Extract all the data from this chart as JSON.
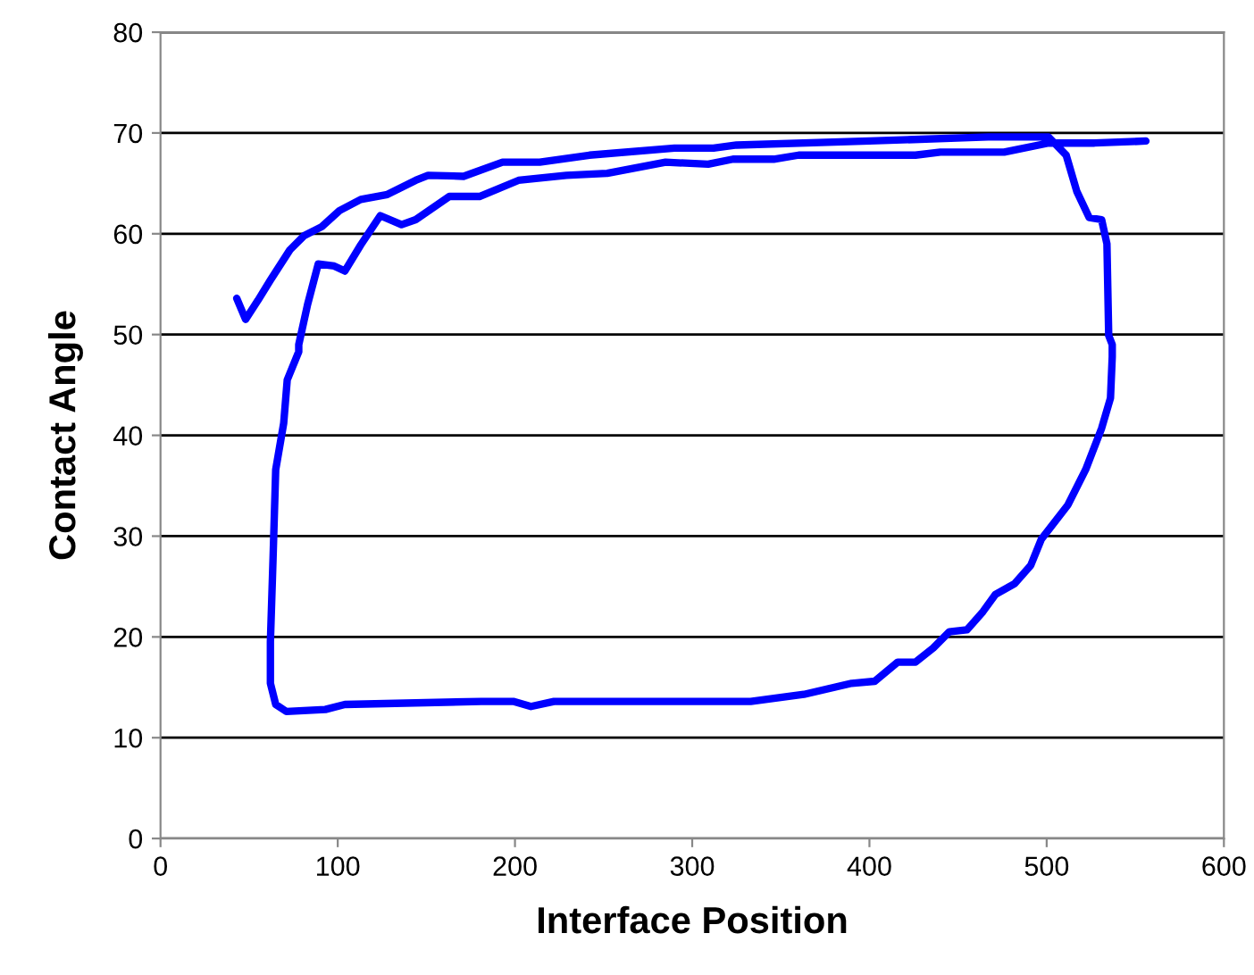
{
  "chart_data": {
    "type": "line",
    "xlabel": "Interface Position",
    "ylabel": "Contact Angle",
    "xlim": [
      0,
      600
    ],
    "ylim": [
      0,
      80
    ],
    "xticks": [
      0,
      100,
      200,
      300,
      400,
      500,
      600
    ],
    "yticks": [
      0,
      10,
      20,
      30,
      40,
      50,
      60,
      70,
      80
    ],
    "grid": "y",
    "line_style": "solid",
    "marker": "none",
    "series": [
      {
        "color": "#0000ff",
        "x": [
          43,
          48,
          55,
          62,
          73,
          81,
          91,
          101,
          113,
          128,
          144,
          151,
          171,
          193,
          214,
          242,
          290,
          312,
          325,
          400,
          467,
          501,
          511,
          517,
          524,
          531,
          534,
          535,
          537,
          537,
          536,
          531,
          522,
          512,
          497,
          491,
          482,
          471,
          464,
          455,
          445,
          436,
          426,
          416,
          403,
          390,
          363,
          333,
          222,
          209,
          199,
          181,
          104,
          93,
          71,
          65,
          62,
          62,
          63.5,
          65,
          69.5,
          71.5,
          78,
          78,
          83,
          89,
          98,
          104,
          113,
          124,
          136,
          144,
          163,
          180,
          202,
          229,
          252,
          285,
          309,
          323,
          346,
          360,
          426,
          440,
          476,
          501,
          527,
          556
        ],
        "values": [
          53.6,
          51.5,
          53.4,
          55.4,
          58.4,
          59.8,
          60.7,
          62.3,
          63.4,
          63.9,
          65.3,
          65.8,
          65.7,
          67.1,
          67.1,
          67.8,
          68.5,
          68.5,
          68.8,
          69.2,
          69.6,
          69.6,
          67.8,
          64.2,
          61.6,
          61.4,
          59,
          49.9,
          49,
          47.8,
          43.7,
          40.7,
          36.6,
          33.1,
          29.7,
          27.1,
          25.3,
          24.2,
          22.5,
          20.7,
          20.5,
          18.9,
          17.5,
          17.5,
          15.6,
          15.4,
          14.3,
          13.6,
          13.6,
          13.1,
          13.6,
          13.6,
          13.3,
          12.8,
          12.6,
          13.3,
          15.4,
          19.5,
          27.8,
          36.6,
          41.2,
          45.5,
          48.3,
          49,
          53,
          57,
          56.8,
          56.3,
          58.9,
          61.8,
          60.9,
          61.4,
          63.7,
          63.7,
          65.3,
          65.8,
          66,
          67.1,
          66.9,
          67.4,
          67.4,
          67.8,
          67.8,
          68.1,
          68.1,
          69,
          69,
          69.2
        ]
      }
    ]
  }
}
